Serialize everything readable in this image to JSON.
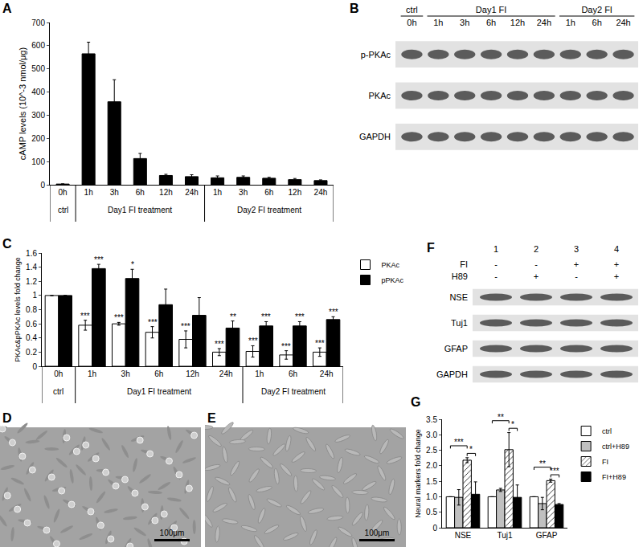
{
  "chart_data": [
    {
      "panel": "A",
      "type": "bar",
      "ylabel": "cAMP levels (10^-3 nmol/μg)",
      "categories": [
        "0h",
        "1h",
        "3h",
        "6h",
        "12h",
        "24h",
        "1h",
        "3h",
        "6h",
        "12h",
        "24h"
      ],
      "groups": [
        {
          "label": "ctrl",
          "from": 0,
          "to": 0
        },
        {
          "label": "Day1 FI treatment",
          "from": 1,
          "to": 5
        },
        {
          "label": "Day2 FI treatment",
          "from": 6,
          "to": 10
        }
      ],
      "values": [
        3,
        565,
        358,
        113,
        40,
        35,
        30,
        32,
        28,
        22,
        18
      ],
      "errors": [
        1,
        50,
        95,
        22,
        5,
        8,
        8,
        6,
        4,
        5,
        3
      ],
      "color": "#000000",
      "ylim": [
        0,
        700
      ],
      "yticks": [
        0,
        100,
        200,
        300,
        400,
        500,
        600,
        700
      ],
      "grid": false
    },
    {
      "panel": "C",
      "type": "bar",
      "ylabel": "PKAc&pPKAc levels fold change",
      "categories": [
        "0h",
        "1h",
        "3h",
        "6h",
        "12h",
        "24h",
        "1h",
        "6h",
        "24h"
      ],
      "groups": [
        {
          "label": "ctrl",
          "from": 0,
          "to": 0
        },
        {
          "label": "Day1 FI treatment",
          "from": 1,
          "to": 5
        },
        {
          "label": "Day2 FI treatment",
          "from": 6,
          "to": 8
        }
      ],
      "series": [
        {
          "name": "PKAc",
          "color": "#ffffff",
          "values": [
            1,
            0.58,
            0.6,
            0.48,
            0.38,
            0.2,
            0.21,
            0.16,
            0.2
          ],
          "errors": [
            0,
            0.07,
            0.02,
            0.08,
            0.12,
            0.05,
            0.08,
            0.06,
            0.06
          ],
          "significance": [
            null,
            "***",
            "***",
            "***",
            "***",
            "***",
            "***",
            "***",
            "***"
          ]
        },
        {
          "name": "pPKAc",
          "color": "#000000",
          "values": [
            1,
            1.38,
            1.24,
            0.87,
            0.72,
            0.54,
            0.57,
            0.57,
            0.66
          ],
          "errors": [
            0,
            0.06,
            0.13,
            0.22,
            0.25,
            0.1,
            0.06,
            0.06,
            0.04
          ],
          "significance": [
            null,
            "***",
            "*",
            null,
            null,
            "**",
            "***",
            "***",
            "***"
          ]
        }
      ],
      "ylim": [
        0,
        1.6
      ],
      "yticks": [
        0,
        0.2,
        0.4,
        0.6,
        0.8,
        1,
        1.2,
        1.4,
        1.6
      ],
      "grid": false,
      "legend": "upper right"
    },
    {
      "panel": "G",
      "type": "bar",
      "ylabel": "Neural markers fold change",
      "categories": [
        "NSE",
        "Tuj1",
        "GFAP"
      ],
      "series": [
        {
          "name": "ctrl",
          "color": "#ffffff",
          "marker": "solid",
          "values": [
            1,
            1,
            1
          ],
          "errors": [
            0,
            0,
            0
          ]
        },
        {
          "name": "ctrl+H89",
          "color": "#c0c0c0",
          "marker": "solid",
          "values": [
            0.98,
            1.22,
            0.78
          ],
          "errors": [
            0.25,
            0.05,
            0.2
          ]
        },
        {
          "name": "FI",
          "color": "#ffffff",
          "marker": "hatched",
          "values": [
            2.18,
            2.52,
            1.52
          ],
          "errors": [
            0.08,
            0.55,
            0.05
          ]
        },
        {
          "name": "FI+H89",
          "color": "#000000",
          "marker": "solid",
          "values": [
            1.08,
            0.98,
            0.75
          ],
          "errors": [
            0.4,
            0.4,
            0.03
          ]
        }
      ],
      "comparisons": [
        {
          "between": [
            "ctrl",
            "FI"
          ],
          "labels": [
            "***",
            "**",
            "**"
          ]
        },
        {
          "between": [
            "FI",
            "FI+H89"
          ],
          "labels": [
            "*",
            "*",
            "***"
          ]
        }
      ],
      "ylim": [
        0,
        3.5
      ],
      "yticks": [
        0,
        0.5,
        {
          "value": 1,
          "label": "1.0"
        },
        1.5,
        {
          "value": 2,
          "label": "2.0"
        },
        2.5,
        {
          "value": 3,
          "label": "3.0"
        },
        3.5
      ],
      "grid": false,
      "legend": "upper right"
    }
  ],
  "blots": [
    {
      "panel": "B",
      "groups": [
        {
          "label": "ctrl",
          "from": 0,
          "to": 0
        },
        {
          "label": "Day1 FI",
          "from": 1,
          "to": 5
        },
        {
          "label": "Day2 FI",
          "from": 6,
          "to": 8
        }
      ],
      "lanes": [
        "0h",
        "1h",
        "3h",
        "6h",
        "12h",
        "24h",
        "1h",
        "6h",
        "24h"
      ],
      "rows": [
        "p-PKAc",
        "PKAc",
        "GAPDH"
      ]
    },
    {
      "panel": "F",
      "lanes": [
        "1",
        "2",
        "3",
        "4"
      ],
      "conditions": [
        {
          "label": "FI",
          "marks": [
            "-",
            "-",
            "+",
            "+"
          ]
        },
        {
          "label": "H89",
          "marks": [
            "-",
            "+",
            "-",
            "+"
          ]
        }
      ],
      "rows": [
        "NSE",
        "Tuj1",
        "GFAP",
        "GAPDH"
      ]
    }
  ],
  "images": [
    {
      "panel": "D",
      "scale_bar": "100μm"
    },
    {
      "panel": "E",
      "scale_bar": "100μm"
    }
  ]
}
